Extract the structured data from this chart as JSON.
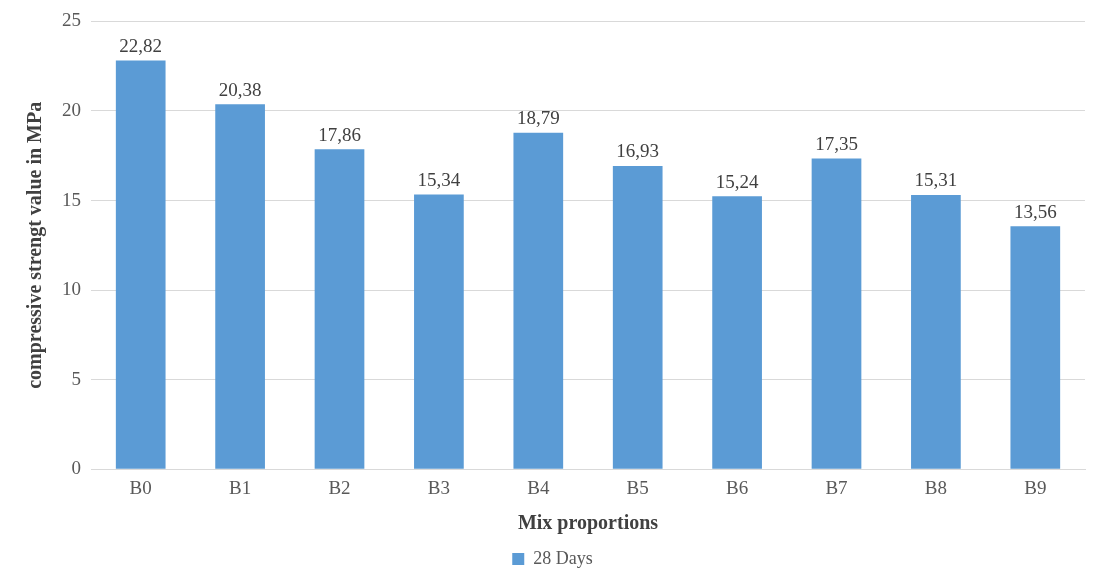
{
  "chart_data": {
    "type": "bar",
    "xlabel": "Mix proportions",
    "ylabel": "compressive strengt value in MPa",
    "categories": [
      "B0",
      "B1",
      "B2",
      "B3",
      "B4",
      "B5",
      "B6",
      "B7",
      "B8",
      "B9"
    ],
    "series": [
      {
        "name": "28 Days",
        "color": "#5b9bd5",
        "values": [
          22.82,
          20.38,
          17.86,
          15.34,
          18.79,
          16.93,
          15.24,
          17.35,
          15.31,
          13.56
        ],
        "value_labels": [
          "22,82",
          "20,38",
          "17,86",
          "15,34",
          "18,79",
          "16,93",
          "15,24",
          "17,35",
          "15,31",
          "13,56"
        ]
      }
    ],
    "ylim": [
      0,
      25
    ],
    "yticks": [
      0,
      5,
      10,
      15,
      20,
      25
    ],
    "grid": "y",
    "legend": "bottom"
  }
}
